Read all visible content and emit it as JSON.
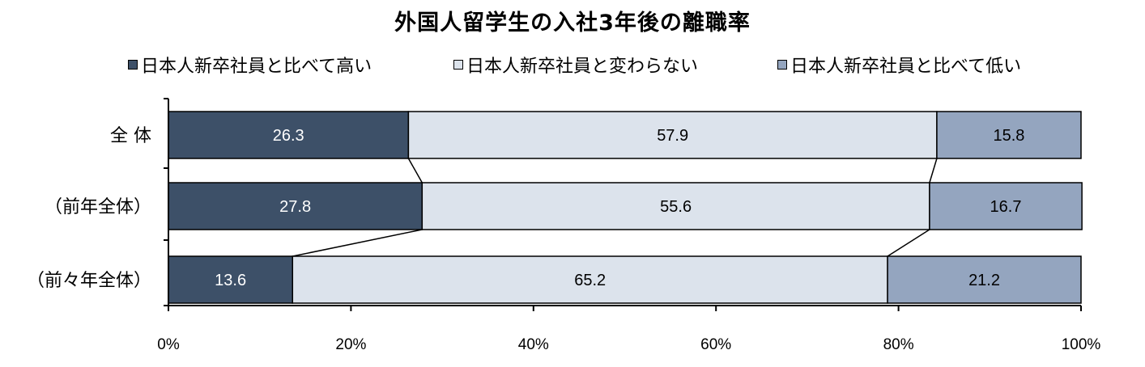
{
  "chart_data": {
    "type": "bar",
    "orientation": "horizontal",
    "stacked": true,
    "percent": true,
    "title": "外国人留学生の入社3年後の離職率",
    "categories": [
      "全 体",
      "（前年全体）",
      "（前々年全体）"
    ],
    "series": [
      {
        "name": "日本人新卒社員と比べて高い",
        "values": [
          26.3,
          27.8,
          13.6
        ],
        "color": "#3d5068",
        "label_color": "#ffffff"
      },
      {
        "name": "日本人新卒社員と変わらない",
        "values": [
          57.9,
          55.6,
          65.2
        ],
        "color": "#dce3ec",
        "label_color": "#000000"
      },
      {
        "name": "日本人新卒社員と比べて低い",
        "values": [
          15.8,
          16.7,
          21.2
        ],
        "color": "#94a5bf",
        "label_color": "#000000"
      }
    ],
    "xlim": [
      0,
      100
    ],
    "xticks": [
      "0%",
      "20%",
      "40%",
      "60%",
      "80%",
      "100%"
    ],
    "legend_position": "top",
    "connector_lines": true,
    "grid": false
  }
}
